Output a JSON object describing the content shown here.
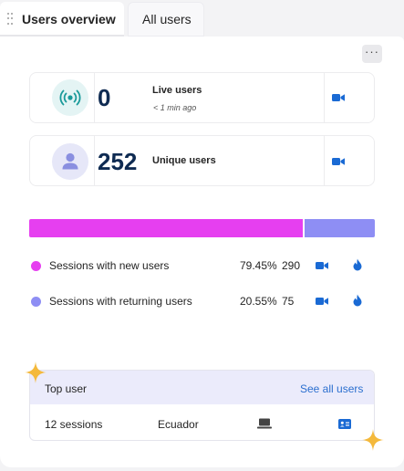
{
  "tabs": [
    {
      "label": "Users overview",
      "active": true
    },
    {
      "label": "All users",
      "active": false
    }
  ],
  "more_label": "···",
  "live": {
    "value": "0",
    "label": "Live users",
    "sub": "< 1 min ago"
  },
  "unique": {
    "value": "252",
    "label": "Unique users"
  },
  "sessions_split": {
    "new_fraction": 0.7945,
    "returning_fraction": 0.2055
  },
  "legend": [
    {
      "label": "Sessions with new users",
      "percent": "79.45%",
      "count": "290",
      "color": "#e63ff0"
    },
    {
      "label": "Sessions with returning users",
      "percent": "20.55%",
      "count": "75",
      "color": "#8e8ef4"
    }
  ],
  "top_user": {
    "title": "Top user",
    "see_all": "See all users",
    "sessions": "12 sessions",
    "country": "Ecuador"
  },
  "colors": {
    "accent_blue": "#1a6ad4",
    "sparkle": "#f4b93c",
    "number": "#0f2b52"
  },
  "icons": [
    "drag-handle-icon",
    "more-icon",
    "broadcast-icon",
    "person-icon",
    "video-camera-icon",
    "flame-icon",
    "laptop-icon",
    "contact-card-icon",
    "sparkle-icon"
  ]
}
